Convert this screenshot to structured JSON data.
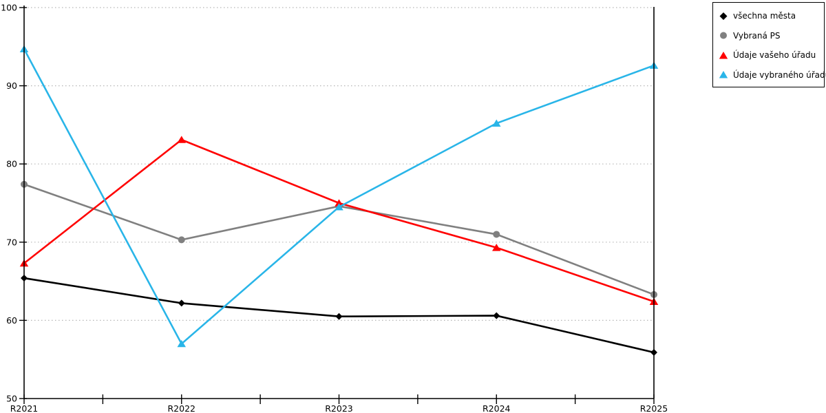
{
  "chart_data": {
    "type": "line",
    "title": "",
    "xlabel": "",
    "ylabel": "",
    "categories": [
      "R2021",
      "R2022",
      "R2023",
      "R2024",
      "R2025"
    ],
    "series": [
      {
        "name": "všechna města",
        "marker": "diamond",
        "color": "#000000",
        "values": [
          65.4,
          62.2,
          60.5,
          60.6,
          55.9
        ]
      },
      {
        "name": "Vybraná PS",
        "marker": "circle",
        "color": "#808080",
        "values": [
          77.4,
          70.3,
          74.6,
          71.0,
          63.3
        ]
      },
      {
        "name": "Údaje vašeho úřadu",
        "marker": "triangle",
        "color": "#ff0000",
        "values": [
          67.3,
          83.1,
          75.0,
          69.3,
          62.4
        ]
      },
      {
        "name": "Údaje vybraného úřadu",
        "marker": "triangle",
        "color": "#29b5e8",
        "values": [
          94.7,
          57.0,
          74.5,
          85.2,
          92.6
        ]
      }
    ],
    "ylim": [
      50,
      100
    ],
    "y_ticks": [
      50,
      60,
      70,
      80,
      90,
      100
    ],
    "x_minor_ticks_between_categories": true,
    "grid": "horizontal-dotted",
    "legend_position": "top-right"
  },
  "colors": {
    "background": "#ffffff",
    "grid": "#b5b5b5",
    "axis": "#000000",
    "tick_label": "#000000",
    "legend_border": "#000000"
  }
}
